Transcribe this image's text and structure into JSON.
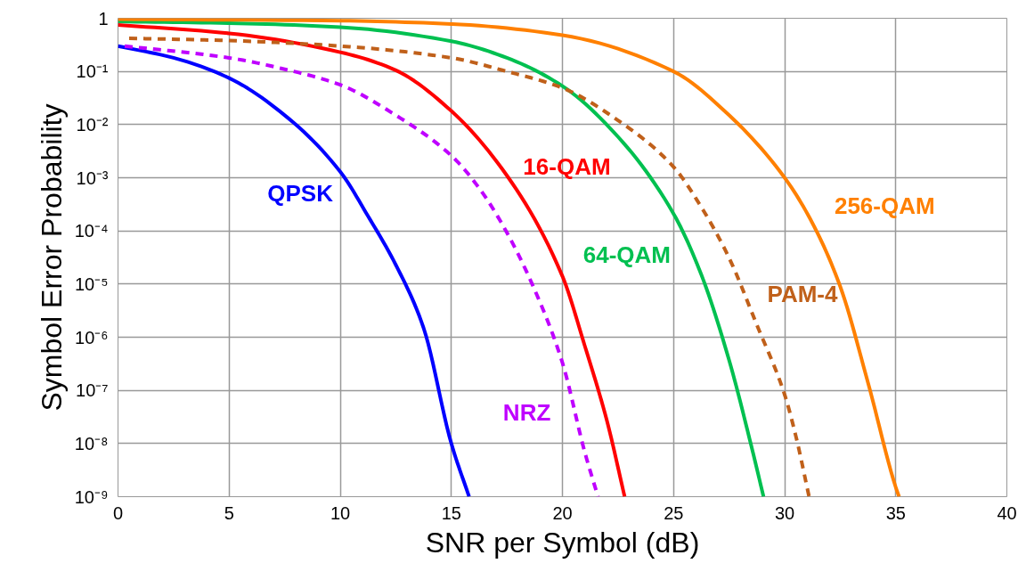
{
  "chart_data": {
    "type": "line",
    "xlabel": "SNR per Symbol (dB)",
    "ylabel": "Symbol Error Probability",
    "xlim": [
      0,
      40
    ],
    "xticks": [
      0,
      5,
      10,
      15,
      20,
      25,
      30,
      35,
      40
    ],
    "ylim": [
      1e-09,
      1
    ],
    "log": "y",
    "yticks": [
      {
        "value": 1,
        "label": "1"
      },
      {
        "value": 0.1,
        "label": "10⁻¹"
      },
      {
        "value": 0.01,
        "label": "10⁻²"
      },
      {
        "value": 0.001,
        "label": "10⁻³"
      },
      {
        "value": 0.0001,
        "label": "10⁻⁴"
      },
      {
        "value": 1e-05,
        "label": "10⁻⁵"
      },
      {
        "value": 1e-06,
        "label": "10⁻⁶"
      },
      {
        "value": 1e-07,
        "label": "10⁻⁷"
      },
      {
        "value": 1e-08,
        "label": "10⁻⁸"
      },
      {
        "value": 1e-09,
        "label": "10⁻⁹"
      }
    ],
    "grid": true,
    "series": [
      {
        "name": "QPSK",
        "color": "#0000ff",
        "line_style": "solid",
        "x": [
          0,
          2.5,
          5,
          7.5,
          10,
          11.25,
          12.5,
          13.75,
          15,
          15.8
        ],
        "values": [
          0.3,
          0.18,
          0.075,
          0.015,
          0.0013,
          0.00019,
          2.3e-05,
          1.5e-06,
          1e-08,
          1e-09
        ]
      },
      {
        "name": "16-QAM",
        "color": "#ff0000",
        "line_style": "solid",
        "x": [
          0,
          5,
          10,
          12.5,
          15,
          17.5,
          20,
          21,
          22,
          22.8
        ],
        "values": [
          0.75,
          0.52,
          0.23,
          0.105,
          0.018,
          0.0011,
          1.4e-05,
          7e-07,
          2.7e-08,
          1e-09
        ]
      },
      {
        "name": "64-QAM",
        "color": "#00c050",
        "line_style": "solid",
        "x": [
          0,
          5,
          10,
          15,
          17.5,
          20,
          22.5,
          25,
          26.25,
          27.5,
          28.5,
          29.05
        ],
        "values": [
          0.87,
          0.81,
          0.68,
          0.37,
          0.18,
          0.053,
          0.0059,
          0.00021,
          1.5e-05,
          3.7e-07,
          9e-09,
          1e-09
        ]
      },
      {
        "name": "256-QAM",
        "color": "#ff8000",
        "line_style": "solid",
        "x": [
          0,
          10,
          15,
          20,
          25,
          27.5,
          30,
          31.25,
          32.5,
          33.75,
          35,
          35.15
        ],
        "values": [
          0.96,
          0.9,
          0.78,
          0.48,
          0.1,
          0.015,
          0.001,
          0.00014,
          9e-06,
          1.4e-07,
          1.5e-09,
          1e-09
        ]
      },
      {
        "name": "PAM-4",
        "color": "#c0601a",
        "line_style": "dashed",
        "x": [
          0.5,
          5,
          10,
          15,
          17.5,
          20,
          22.5,
          25,
          26.25,
          27.5,
          28.75,
          30,
          30.5,
          31.1
        ],
        "values": [
          0.42,
          0.38,
          0.3,
          0.18,
          0.1,
          0.049,
          0.012,
          0.0016,
          0.00028,
          3.1e-05,
          1.7e-06,
          8.3e-08,
          1.4e-08,
          1e-09
        ]
      },
      {
        "name": "NRZ",
        "color": "#bf00ff",
        "line_style": "dashed",
        "x": [
          0.3,
          5,
          7.5,
          10,
          12.5,
          15,
          16.25,
          17.5,
          18.75,
          20,
          21,
          21.6
        ],
        "values": [
          0.3,
          0.18,
          0.11,
          0.056,
          0.015,
          0.0026,
          0.00064,
          9.3e-05,
          7.8e-06,
          3.3e-07,
          7e-09,
          1e-09
        ]
      }
    ]
  }
}
